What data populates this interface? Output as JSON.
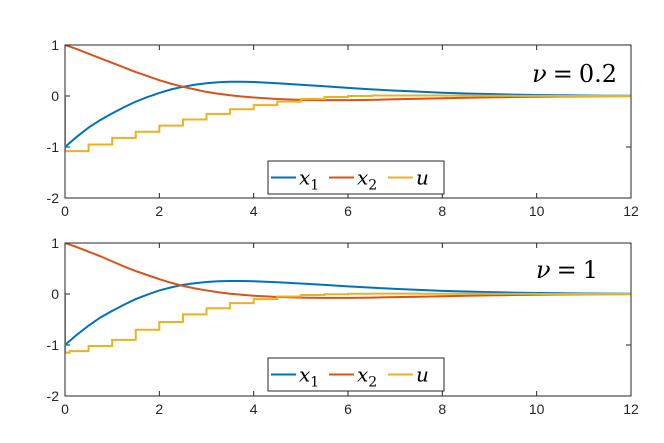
{
  "chart_data": [
    {
      "type": "line",
      "annotation": "ν = 0.2",
      "annotation_symbol": "ν",
      "annotation_value": "0.2",
      "xlim": [
        0,
        12
      ],
      "ylim": [
        -2,
        1
      ],
      "xticks": [
        "0",
        "2",
        "4",
        "6",
        "8",
        "10",
        "12"
      ],
      "yticks": [
        "1",
        "0",
        "-1",
        "-2"
      ],
      "legend": {
        "position": "bottom-center",
        "entries": [
          {
            "symbol": "x",
            "sub": "1"
          },
          {
            "symbol": "x",
            "sub": "2"
          },
          {
            "symbol": "u",
            "sub": ""
          }
        ]
      },
      "series": [
        {
          "name": "x1",
          "color": "#0072BD",
          "step": false,
          "x": [
            0,
            0.25,
            0.5,
            0.75,
            1,
            1.25,
            1.5,
            1.75,
            2,
            2.25,
            2.5,
            2.75,
            3,
            3.25,
            3.5,
            3.75,
            4,
            4.5,
            5,
            5.5,
            6,
            6.5,
            7,
            7.5,
            8,
            8.5,
            9,
            9.5,
            10,
            10.5,
            11,
            11.5,
            12
          ],
          "y": [
            -1,
            -0.8,
            -0.62,
            -0.47,
            -0.34,
            -0.22,
            -0.11,
            -0.02,
            0.06,
            0.13,
            0.18,
            0.22,
            0.25,
            0.27,
            0.28,
            0.28,
            0.275,
            0.25,
            0.22,
            0.19,
            0.16,
            0.13,
            0.105,
            0.085,
            0.065,
            0.05,
            0.038,
            0.028,
            0.02,
            0.014,
            0.01,
            0.006,
            0.004
          ]
        },
        {
          "name": "x2",
          "color": "#D95319",
          "step": false,
          "x": [
            0,
            0.25,
            0.5,
            0.75,
            1,
            1.25,
            1.5,
            1.75,
            2,
            2.25,
            2.5,
            2.75,
            3,
            3.25,
            3.5,
            3.75,
            4,
            4.5,
            5,
            5.5,
            6,
            6.5,
            7,
            7.5,
            8,
            8.5,
            9,
            9.5,
            10,
            10.5,
            11,
            11.5,
            12
          ],
          "y": [
            1,
            0.92,
            0.83,
            0.74,
            0.65,
            0.56,
            0.47,
            0.39,
            0.31,
            0.24,
            0.18,
            0.13,
            0.08,
            0.045,
            0.015,
            -0.01,
            -0.03,
            -0.06,
            -0.075,
            -0.08,
            -0.08,
            -0.075,
            -0.065,
            -0.055,
            -0.045,
            -0.035,
            -0.027,
            -0.02,
            -0.015,
            -0.01,
            -0.007,
            -0.005,
            -0.003
          ]
        },
        {
          "name": "u",
          "color": "#EDB120",
          "step": true,
          "x": [
            0,
            0.5,
            1,
            1.5,
            2,
            2.5,
            3,
            3.5,
            4,
            4.5,
            5,
            5.5,
            6,
            6.5,
            7,
            7.5,
            8,
            8.5,
            9,
            9.5,
            10,
            10.5,
            11,
            11.5,
            12
          ],
          "y": [
            -1.08,
            -0.95,
            -0.82,
            -0.7,
            -0.58,
            -0.46,
            -0.35,
            -0.26,
            -0.18,
            -0.11,
            -0.06,
            -0.02,
            0,
            0.01,
            0.01,
            0.01,
            0.008,
            0.006,
            0.004,
            0.003,
            0.002,
            0.001,
            0,
            0,
            0
          ]
        }
      ]
    },
    {
      "type": "line",
      "annotation": "ν = 1",
      "annotation_symbol": "ν",
      "annotation_value": "1",
      "xlim": [
        0,
        12
      ],
      "ylim": [
        -2,
        1
      ],
      "xticks": [
        "0",
        "2",
        "4",
        "6",
        "8",
        "10",
        "12"
      ],
      "yticks": [
        "1",
        "0",
        "-1",
        "-2"
      ],
      "legend": {
        "position": "bottom-center",
        "entries": [
          {
            "symbol": "x",
            "sub": "1"
          },
          {
            "symbol": "x",
            "sub": "2"
          },
          {
            "symbol": "u",
            "sub": ""
          }
        ]
      },
      "series": [
        {
          "name": "x1",
          "color": "#0072BD",
          "step": false,
          "x": [
            0,
            0.25,
            0.5,
            0.75,
            1,
            1.25,
            1.5,
            1.75,
            2,
            2.25,
            2.5,
            2.75,
            3,
            3.25,
            3.5,
            3.75,
            4,
            4.5,
            5,
            5.5,
            6,
            6.5,
            7,
            7.5,
            8,
            8.5,
            9,
            9.5,
            10,
            10.5,
            11,
            11.5,
            12
          ],
          "y": [
            -1,
            -0.8,
            -0.62,
            -0.46,
            -0.33,
            -0.21,
            -0.1,
            -0.01,
            0.07,
            0.13,
            0.18,
            0.21,
            0.235,
            0.25,
            0.255,
            0.255,
            0.25,
            0.23,
            0.205,
            0.18,
            0.15,
            0.125,
            0.1,
            0.08,
            0.062,
            0.048,
            0.036,
            0.027,
            0.02,
            0.014,
            0.01,
            0.007,
            0.005
          ]
        },
        {
          "name": "x2",
          "color": "#D95319",
          "step": false,
          "x": [
            0,
            0.25,
            0.5,
            0.75,
            1,
            1.25,
            1.5,
            1.75,
            2,
            2.25,
            2.5,
            2.75,
            3,
            3.25,
            3.5,
            3.75,
            4,
            4.5,
            5,
            5.5,
            6,
            6.5,
            7,
            7.5,
            8,
            8.5,
            9,
            9.5,
            10,
            10.5,
            11,
            11.5,
            12
          ],
          "y": [
            1,
            0.92,
            0.83,
            0.74,
            0.64,
            0.54,
            0.45,
            0.37,
            0.29,
            0.22,
            0.16,
            0.11,
            0.07,
            0.035,
            0.005,
            -0.015,
            -0.035,
            -0.06,
            -0.072,
            -0.076,
            -0.075,
            -0.07,
            -0.062,
            -0.053,
            -0.044,
            -0.035,
            -0.027,
            -0.02,
            -0.015,
            -0.01,
            -0.007,
            -0.005,
            -0.003
          ]
        },
        {
          "name": "u",
          "color": "#EDB120",
          "step": true,
          "x": [
            0,
            0.1,
            0.5,
            1,
            1.5,
            2,
            2.5,
            3,
            3.5,
            4,
            4.5,
            5,
            5.5,
            6,
            6.5,
            7,
            7.5,
            8,
            8.5,
            9,
            9.5,
            10,
            10.5,
            11,
            11.5,
            12
          ],
          "y": [
            -1.15,
            -1.12,
            -1.02,
            -0.9,
            -0.7,
            -0.55,
            -0.4,
            -0.28,
            -0.18,
            -0.1,
            -0.05,
            -0.02,
            -0.005,
            0.005,
            0.008,
            0.008,
            0.006,
            0.005,
            0.004,
            0.003,
            0.002,
            0.001,
            0,
            0,
            0,
            0
          ]
        }
      ]
    }
  ]
}
